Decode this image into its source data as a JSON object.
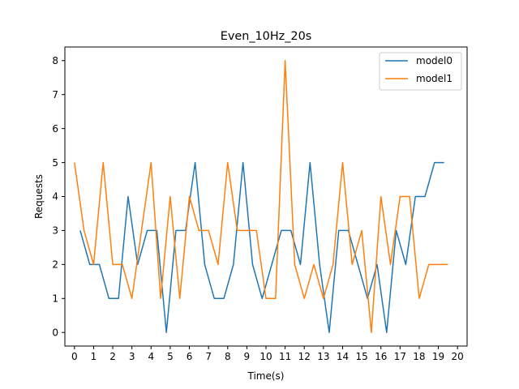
{
  "chart_data": {
    "type": "line",
    "title": "Even_10Hz_20s",
    "xlabel": "Time(s)",
    "ylabel": "Requests",
    "xlim": [
      -0.5,
      20.5
    ],
    "ylim": [
      -0.4,
      8.4
    ],
    "xticks": [
      0,
      1,
      2,
      3,
      4,
      5,
      6,
      7,
      8,
      9,
      10,
      11,
      12,
      13,
      14,
      15,
      16,
      17,
      18,
      19,
      20
    ],
    "yticks": [
      0,
      1,
      2,
      3,
      4,
      5,
      6,
      7,
      8
    ],
    "legend_position": "top-right",
    "grid": false,
    "series": [
      {
        "name": "model0",
        "color": "#1f77b4",
        "x": [
          0.3,
          0.8,
          1.3,
          1.8,
          2.3,
          2.8,
          3.3,
          3.8,
          4.3,
          4.8,
          5.3,
          5.8,
          6.3,
          6.8,
          7.3,
          7.8,
          8.3,
          8.8,
          9.3,
          9.8,
          10.3,
          10.8,
          11.3,
          11.8,
          12.3,
          12.8,
          13.3,
          13.8,
          14.3,
          14.8,
          15.3,
          15.8,
          16.3,
          16.8,
          17.3,
          17.8,
          18.3,
          18.8,
          19.3
        ],
        "y": [
          3,
          2,
          2,
          1,
          1,
          4,
          2,
          3,
          3,
          0,
          3,
          3,
          5,
          2,
          1,
          1,
          2,
          5,
          2,
          1,
          2,
          3,
          3,
          2,
          5,
          2,
          0,
          3,
          3,
          2,
          1,
          2,
          0,
          3,
          2,
          4,
          4,
          5,
          5
        ]
      },
      {
        "name": "model1",
        "color": "#ff7f0e",
        "x": [
          0.0,
          0.5,
          1.0,
          1.5,
          2.0,
          2.5,
          3.0,
          3.5,
          4.0,
          4.5,
          5.0,
          5.5,
          6.0,
          6.5,
          7.0,
          7.5,
          8.0,
          8.5,
          9.0,
          9.5,
          10.0,
          10.5,
          11.0,
          11.5,
          12.0,
          12.5,
          13.0,
          13.5,
          14.0,
          14.5,
          15.0,
          15.5,
          16.0,
          16.5,
          17.0,
          17.5,
          18.0,
          18.5,
          19.0,
          19.5
        ],
        "y": [
          5,
          3,
          2,
          5,
          2,
          2,
          1,
          3,
          5,
          1,
          4,
          1,
          4,
          3,
          3,
          2,
          5,
          3,
          3,
          3,
          1,
          1,
          8,
          2,
          1,
          2,
          1,
          2,
          5,
          2,
          3,
          0,
          4,
          2,
          4,
          4,
          1,
          2,
          2,
          2
        ]
      }
    ]
  }
}
